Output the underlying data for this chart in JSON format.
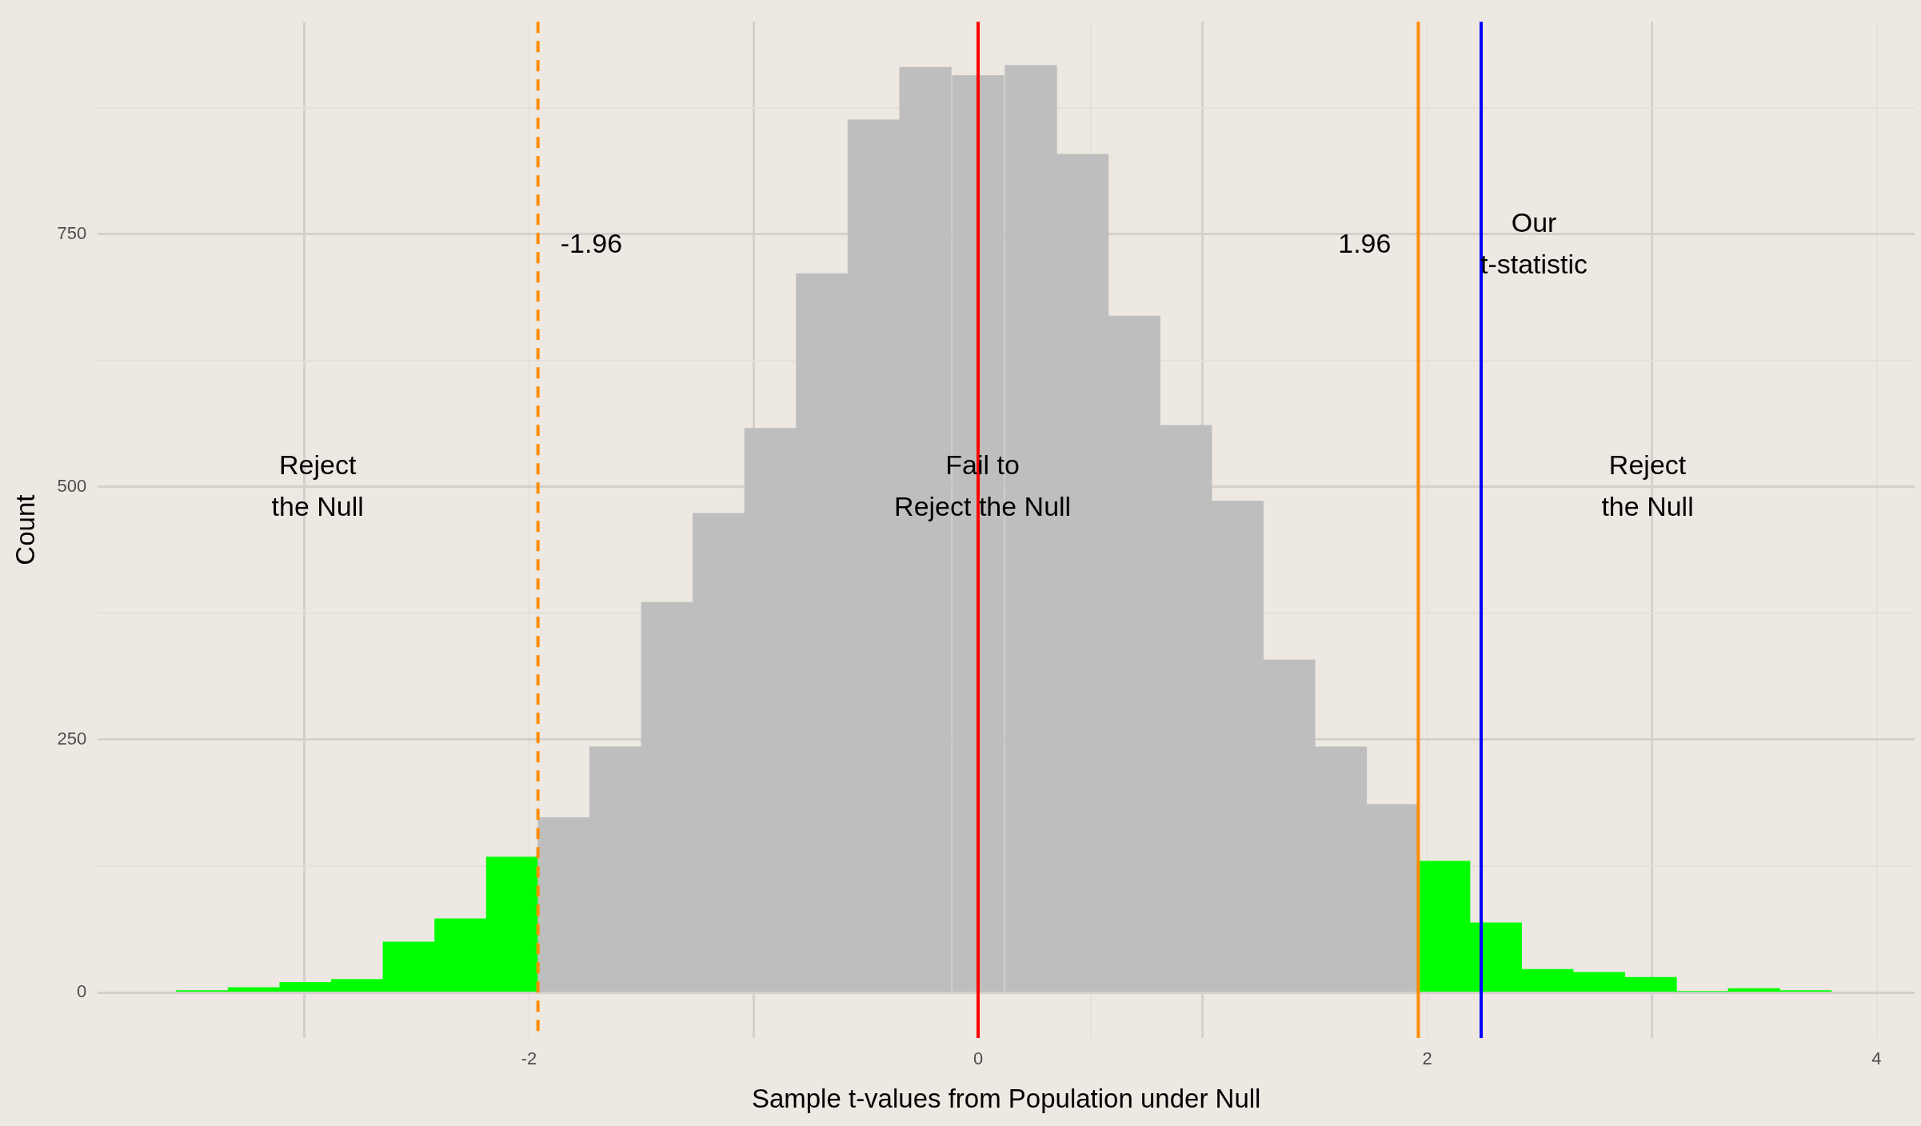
{
  "chart_data": {
    "type": "histogram",
    "xlabel": "Sample t-values from Population under Null",
    "ylabel": "Count",
    "bins": [
      -3.57,
      -3.34,
      -3.11,
      -2.88,
      -2.65,
      -2.42,
      -2.19,
      -1.96,
      -1.73,
      -1.5,
      -1.27,
      -1.04,
      -0.81,
      -0.58,
      -0.35,
      -0.12,
      0.12,
      0.35,
      0.58,
      0.81,
      1.04,
      1.27,
      1.5,
      1.73,
      1.96,
      2.19,
      2.42,
      2.65,
      2.88,
      3.11,
      3.34,
      3.57,
      3.8
    ],
    "values": [
      2,
      5,
      10,
      13,
      50,
      73,
      134,
      173,
      243,
      386,
      474,
      558,
      711,
      863,
      915,
      907,
      917,
      829,
      669,
      561,
      486,
      329,
      243,
      186,
      130,
      69,
      23,
      20,
      15,
      1,
      4,
      2
    ],
    "colors": [
      "#00ff00",
      "#00ff00",
      "#00ff00",
      "#00ff00",
      "#00ff00",
      "#00ff00",
      "#00ff00",
      "#bebebe",
      "#bebebe",
      "#bebebe",
      "#bebebe",
      "#bebebe",
      "#bebebe",
      "#bebebe",
      "#bebebe",
      "#bebebe",
      "#bebebe",
      "#bebebe",
      "#bebebe",
      "#bebebe",
      "#bebebe",
      "#bebebe",
      "#bebebe",
      "#bebebe",
      "#00ff00",
      "#00ff00",
      "#00ff00",
      "#00ff00",
      "#00ff00",
      "#00ff00",
      "#00ff00",
      "#00ff00"
    ],
    "xlim": [
      -3.92,
      4.17
    ],
    "xticks": [
      -2,
      0,
      2,
      4,
      {
        "value": -3,
        "label": null
      },
      {
        "value": -1,
        "label": null
      },
      {
        "value": 1,
        "label": null
      },
      {
        "value": 3,
        "label": null
      }
    ],
    "ylim": [
      -45,
      960
    ],
    "yticks": [
      0,
      250,
      500,
      750,
      {
        "value": 125,
        "label": null
      },
      {
        "value": 375,
        "label": null
      },
      {
        "value": 625,
        "label": null
      },
      {
        "value": 875,
        "label": null
      }
    ],
    "grid": true,
    "legend": false,
    "ref_lines": [
      {
        "axis": "x",
        "value": -1.96,
        "label": "-1.96",
        "color": "#ff8c00",
        "line_style": "dashed"
      },
      {
        "axis": "x",
        "value": 1.96,
        "label": "1.96",
        "color": "#ff8c00",
        "line_style": "solid"
      },
      {
        "axis": "x",
        "value": 0,
        "color": "#ff0000",
        "line_style": "solid"
      },
      {
        "axis": "x",
        "value": 2.24,
        "label": "Our\nt-statistic",
        "color": "#0000ff",
        "line_style": "solid"
      }
    ],
    "annotations": [
      "Reject\nthe Null",
      "Fail to\nReject the Null",
      "Reject\nthe Null"
    ]
  }
}
